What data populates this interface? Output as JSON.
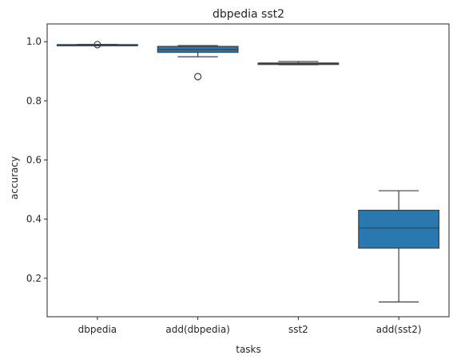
{
  "chart_data": {
    "type": "box",
    "title": "dbpedia sst2",
    "xlabel": "tasks",
    "ylabel": "accuracy",
    "categories": [
      "dbpedia",
      "add(dbpedia)",
      "sst2",
      "add(sst2)"
    ],
    "ylim": [
      0.07,
      1.06
    ],
    "yticks": [
      0.2,
      0.4,
      0.6,
      0.8,
      1.0
    ],
    "ytick_labels": [
      "0.2",
      "0.4",
      "0.6",
      "0.8",
      "1.0"
    ],
    "grid": false,
    "box_color": "#2a78b0",
    "line_color": "#3f3f3f",
    "boxes": [
      {
        "category": "dbpedia",
        "whisker_low": 0.989,
        "q1": 0.99,
        "median": 0.99,
        "q3": 0.99,
        "whisker_high": 0.991,
        "outliers": [
          0.99
        ]
      },
      {
        "category": "add(dbpedia)",
        "whisker_low": 0.949,
        "q1": 0.964,
        "median": 0.973,
        "q3": 0.984,
        "whisker_high": 0.987,
        "outliers": [
          0.882
        ]
      },
      {
        "category": "sst2",
        "whisker_low": 0.922,
        "q1": 0.923,
        "median": 0.925,
        "q3": 0.928,
        "whisker_high": 0.933,
        "outliers": []
      },
      {
        "category": "add(sst2)",
        "whisker_low": 0.12,
        "q1": 0.302,
        "median": 0.37,
        "q3": 0.43,
        "whisker_high": 0.496,
        "outliers": []
      }
    ]
  }
}
